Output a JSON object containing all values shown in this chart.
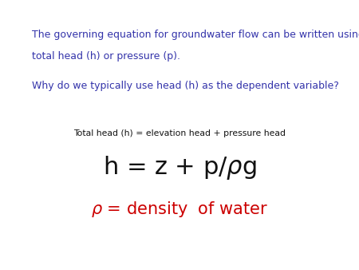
{
  "background_color": "#ffffff",
  "text_color_blue": "#3333aa",
  "text_color_dark": "#111111",
  "text_color_red": "#cc0000",
  "paragraph1_line1": "The governing equation for groundwater flow can be written using",
  "paragraph1_line2": "total head (h) or pressure (p).",
  "paragraph2": "Why do we typically use head (h) as the dependent variable?",
  "subtitle": "Total head (h) = elevation head + pressure head",
  "fig_width": 4.5,
  "fig_height": 3.38,
  "dpi": 100,
  "p1_fontsize": 9.0,
  "p2_fontsize": 9.0,
  "subtitle_fontsize": 7.8,
  "eq_fontsize": 22,
  "rho_fontsize": 15
}
